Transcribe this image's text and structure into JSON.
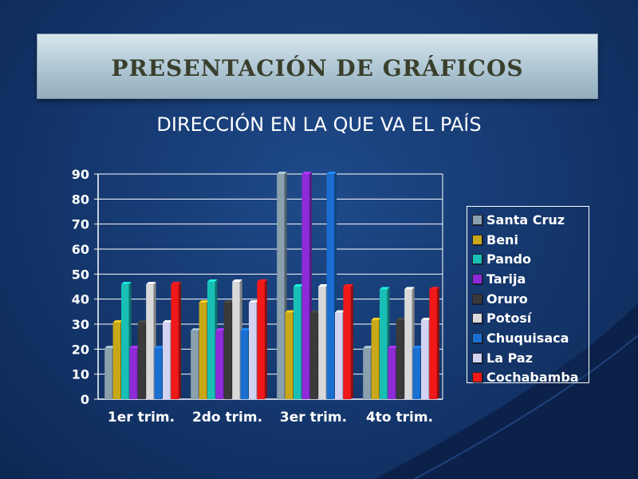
{
  "slide": {
    "title": "PRESENTACIÓN DE GRÁFICOS",
    "subtitle": "DIRECCIÓN EN LA QUE VA EL PAÍS"
  },
  "chart_data": {
    "type": "bar",
    "title": "",
    "xlabel": "",
    "ylabel": "",
    "categories": [
      "1er trim.",
      "2do trim.",
      "3er trim.",
      "4to trim."
    ],
    "ylim": [
      0,
      90
    ],
    "yticks": [
      0,
      10,
      20,
      30,
      40,
      50,
      60,
      70,
      80,
      90
    ],
    "grid": true,
    "legend_position": "right",
    "series": [
      {
        "name": "Santa Cruz",
        "color": "#8aa0ad",
        "values": [
          20.4,
          27.4,
          90,
          20.4
        ]
      },
      {
        "name": "Beni",
        "color": "#c9a818",
        "values": [
          30.6,
          38.6,
          34.6,
          31.6
        ]
      },
      {
        "name": "Pando",
        "color": "#19bfb4",
        "values": [
          45.9,
          46.9,
          45,
          43.9
        ]
      },
      {
        "name": "Tarija",
        "color": "#8e2bd8",
        "values": [
          20.4,
          27.4,
          90,
          20.4
        ]
      },
      {
        "name": "Oruro",
        "color": "#3a3a3a",
        "values": [
          30.6,
          38.6,
          34.6,
          31.6
        ]
      },
      {
        "name": "Potosí",
        "color": "#d9d9d9",
        "values": [
          45.9,
          46.9,
          45,
          43.9
        ]
      },
      {
        "name": "Chuquisaca",
        "color": "#1a6fd0",
        "values": [
          20.4,
          27.4,
          90,
          20.4
        ]
      },
      {
        "name": "La Paz",
        "color": "#d2d2f2",
        "values": [
          30.6,
          38.6,
          34.6,
          31.6
        ]
      },
      {
        "name": "Cochabamba",
        "color": "#f01818",
        "values": [
          45.9,
          46.9,
          45,
          43.9
        ]
      }
    ]
  }
}
